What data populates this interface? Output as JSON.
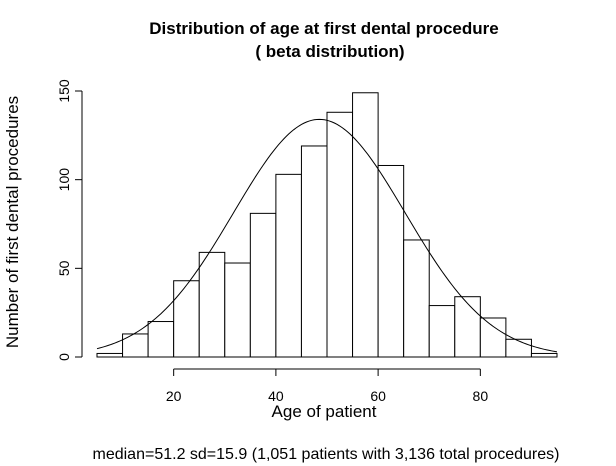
{
  "chart_data": {
    "type": "bar",
    "title_line1": "Distribution of  age at first dental procedure",
    "title_line2": "( beta distribution)",
    "xlabel": "Age of patient",
    "ylabel": "Number of first dental procedures",
    "caption": "median=51.2 sd=15.9 (1,051 patients with 3,136 total procedures)",
    "bin_edges": [
      5,
      10,
      15,
      20,
      25,
      30,
      35,
      40,
      45,
      50,
      55,
      60,
      65,
      70,
      75,
      80,
      85,
      90,
      95
    ],
    "values": [
      2,
      13,
      20,
      43,
      59,
      53,
      81,
      103,
      119,
      138,
      149,
      108,
      66,
      29,
      34,
      22,
      10,
      2
    ],
    "curve": {
      "mean": 48.5,
      "sd": 16.8,
      "peak": 134
    },
    "xlim": [
      5,
      95
    ],
    "ylim": [
      0,
      150
    ],
    "xticks": [
      20,
      40,
      60,
      80
    ],
    "yticks": [
      0,
      50,
      100,
      150
    ],
    "grid": false,
    "legend": "none"
  }
}
